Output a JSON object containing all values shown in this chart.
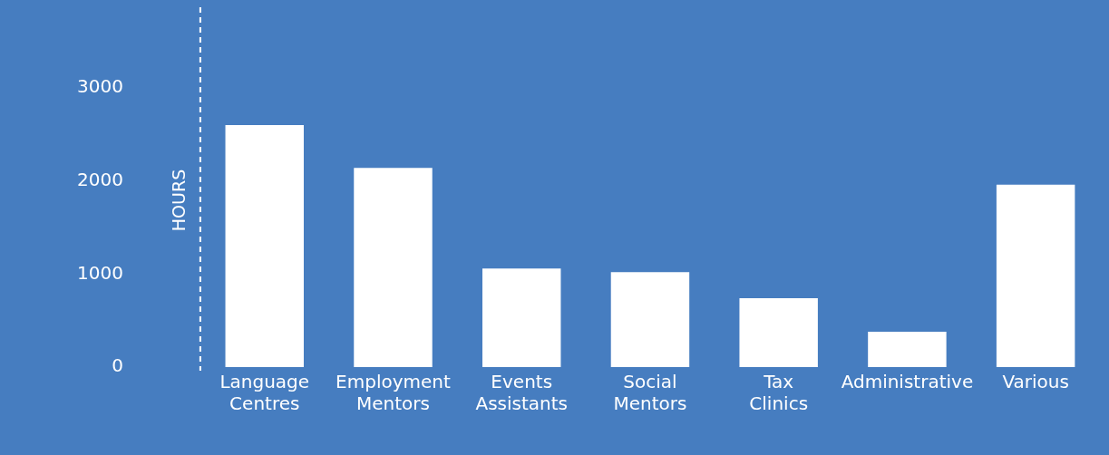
{
  "chart_data": {
    "type": "bar",
    "ylabel": "HOURS",
    "categories": [
      "Language Centres",
      "Employment Mentors",
      "Events Assistants",
      "Social Mentors",
      "Tax Clinics",
      "Administrative",
      "Various"
    ],
    "values": [
      2600,
      2140,
      1060,
      1020,
      740,
      380,
      1960
    ],
    "color": "#ffffff",
    "ylim": [
      0,
      3000
    ],
    "yticks": [
      0,
      1000,
      2000,
      3000
    ],
    "grid": false,
    "legend": false
  }
}
